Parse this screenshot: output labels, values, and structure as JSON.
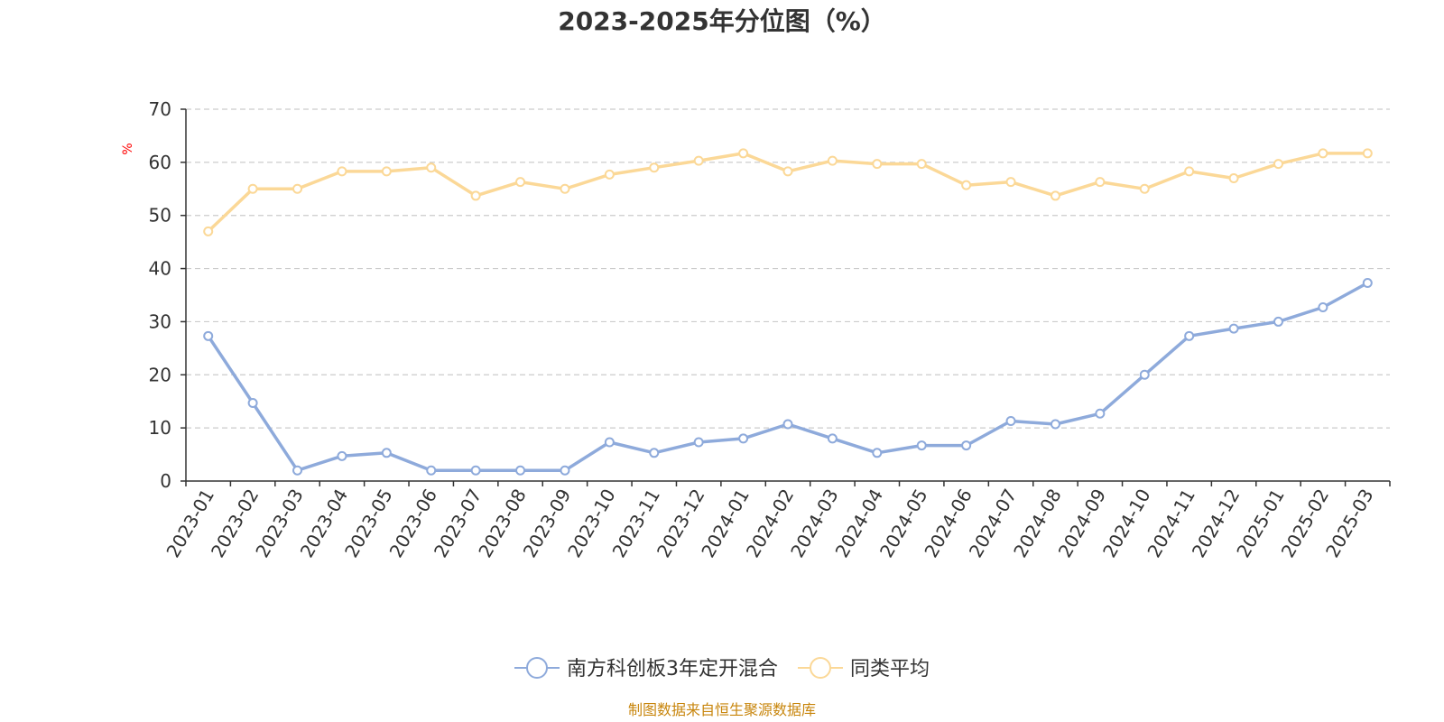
{
  "chart_data": {
    "type": "line",
    "title": "2023-2025年分位图（%）",
    "ylabel": "%",
    "xlabel": "",
    "ylim": [
      0,
      70
    ],
    "yticks": [
      0,
      10,
      20,
      30,
      40,
      50,
      60,
      70
    ],
    "grid": true,
    "legend_position": "bottom-center",
    "categories": [
      "2023-01",
      "2023-02",
      "2023-03",
      "2023-04",
      "2023-05",
      "2023-06",
      "2023-07",
      "2023-08",
      "2023-09",
      "2023-10",
      "2023-11",
      "2023-12",
      "2024-01",
      "2024-02",
      "2024-03",
      "2024-04",
      "2024-05",
      "2024-06",
      "2024-07",
      "2024-08",
      "2024-09",
      "2024-10",
      "2024-11",
      "2024-12",
      "2025-01",
      "2025-02",
      "2025-03"
    ],
    "series": [
      {
        "name": "南方科创板3年定开混合",
        "color": "#8eaadb",
        "values": [
          27.3,
          14.7,
          2.0,
          4.7,
          5.3,
          2.0,
          2.0,
          2.0,
          2.0,
          7.3,
          5.3,
          7.3,
          8.0,
          10.7,
          8.0,
          5.3,
          6.7,
          6.7,
          11.3,
          10.7,
          12.7,
          20.0,
          27.3,
          28.7,
          30.0,
          32.7,
          37.3
        ]
      },
      {
        "name": "同类平均",
        "color": "#fbd897",
        "values": [
          47.0,
          55.0,
          55.0,
          58.3,
          58.3,
          59.0,
          53.7,
          56.3,
          55.0,
          57.7,
          59.0,
          60.3,
          61.7,
          58.3,
          60.3,
          59.7,
          59.7,
          55.7,
          56.3,
          53.7,
          56.3,
          55.0,
          58.3,
          57.0,
          59.7,
          61.7,
          61.7
        ]
      }
    ],
    "source": "制图数据来自恒生聚源数据库",
    "colors": {
      "axis": "#333333",
      "grid": "#cccccc",
      "unit_label": "#ff0000",
      "source": "#c8860d",
      "title": "#333333"
    }
  }
}
